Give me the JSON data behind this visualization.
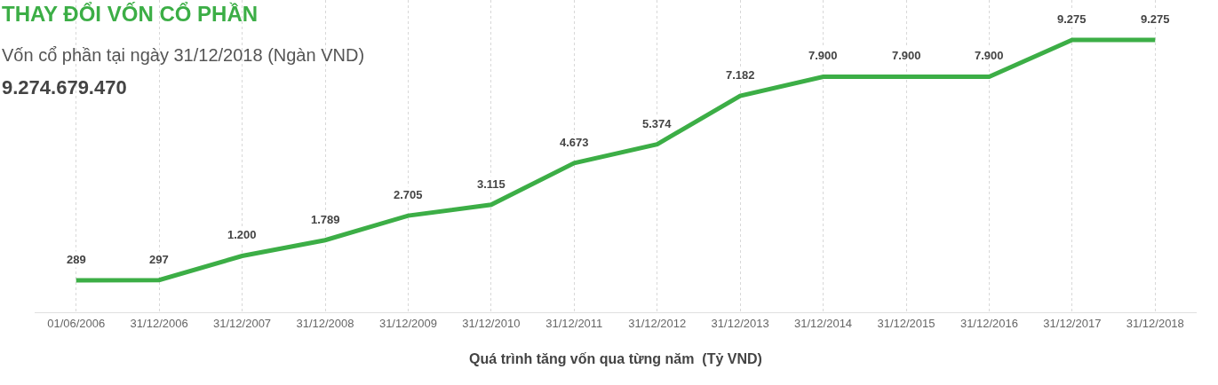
{
  "chart_data": {
    "type": "line",
    "title": "THAY ĐỔI VỐN CỔ PHẦN",
    "subtitle": "Vốn cổ phần tại ngày 31/12/2018 (Ngàn VND)",
    "annotations": [
      "9.274.679.470"
    ],
    "xlabel": "Quá trình tăng vốn qua từng năm  (Tỷ VND)",
    "categories": [
      "01/06/2006",
      "31/12/2006",
      "31/12/2007",
      "31/12/2008",
      "31/12/2009",
      "31/12/2010",
      "31/12/2011",
      "31/12/2012",
      "31/12/2013",
      "31/12/2014",
      "31/12/2015",
      "31/12/2016",
      "31/12/2017",
      "31/12/2018"
    ],
    "series": [
      {
        "color": "#3cae46",
        "values": [
          289,
          297,
          1200,
          1789,
          2705,
          3115,
          4673,
          5374,
          7182,
          7900,
          7900,
          7900,
          9275,
          9275
        ],
        "value_labels": [
          "289",
          "297",
          "1.200",
          "1.789",
          "2.705",
          "3.115",
          "4.673",
          "5.374",
          "7.182",
          "7.900",
          "7.900",
          "7.900",
          "9.275",
          "9.275"
        ]
      }
    ],
    "grid": "x",
    "legend": false,
    "marker": "none",
    "line_style": "solid"
  }
}
